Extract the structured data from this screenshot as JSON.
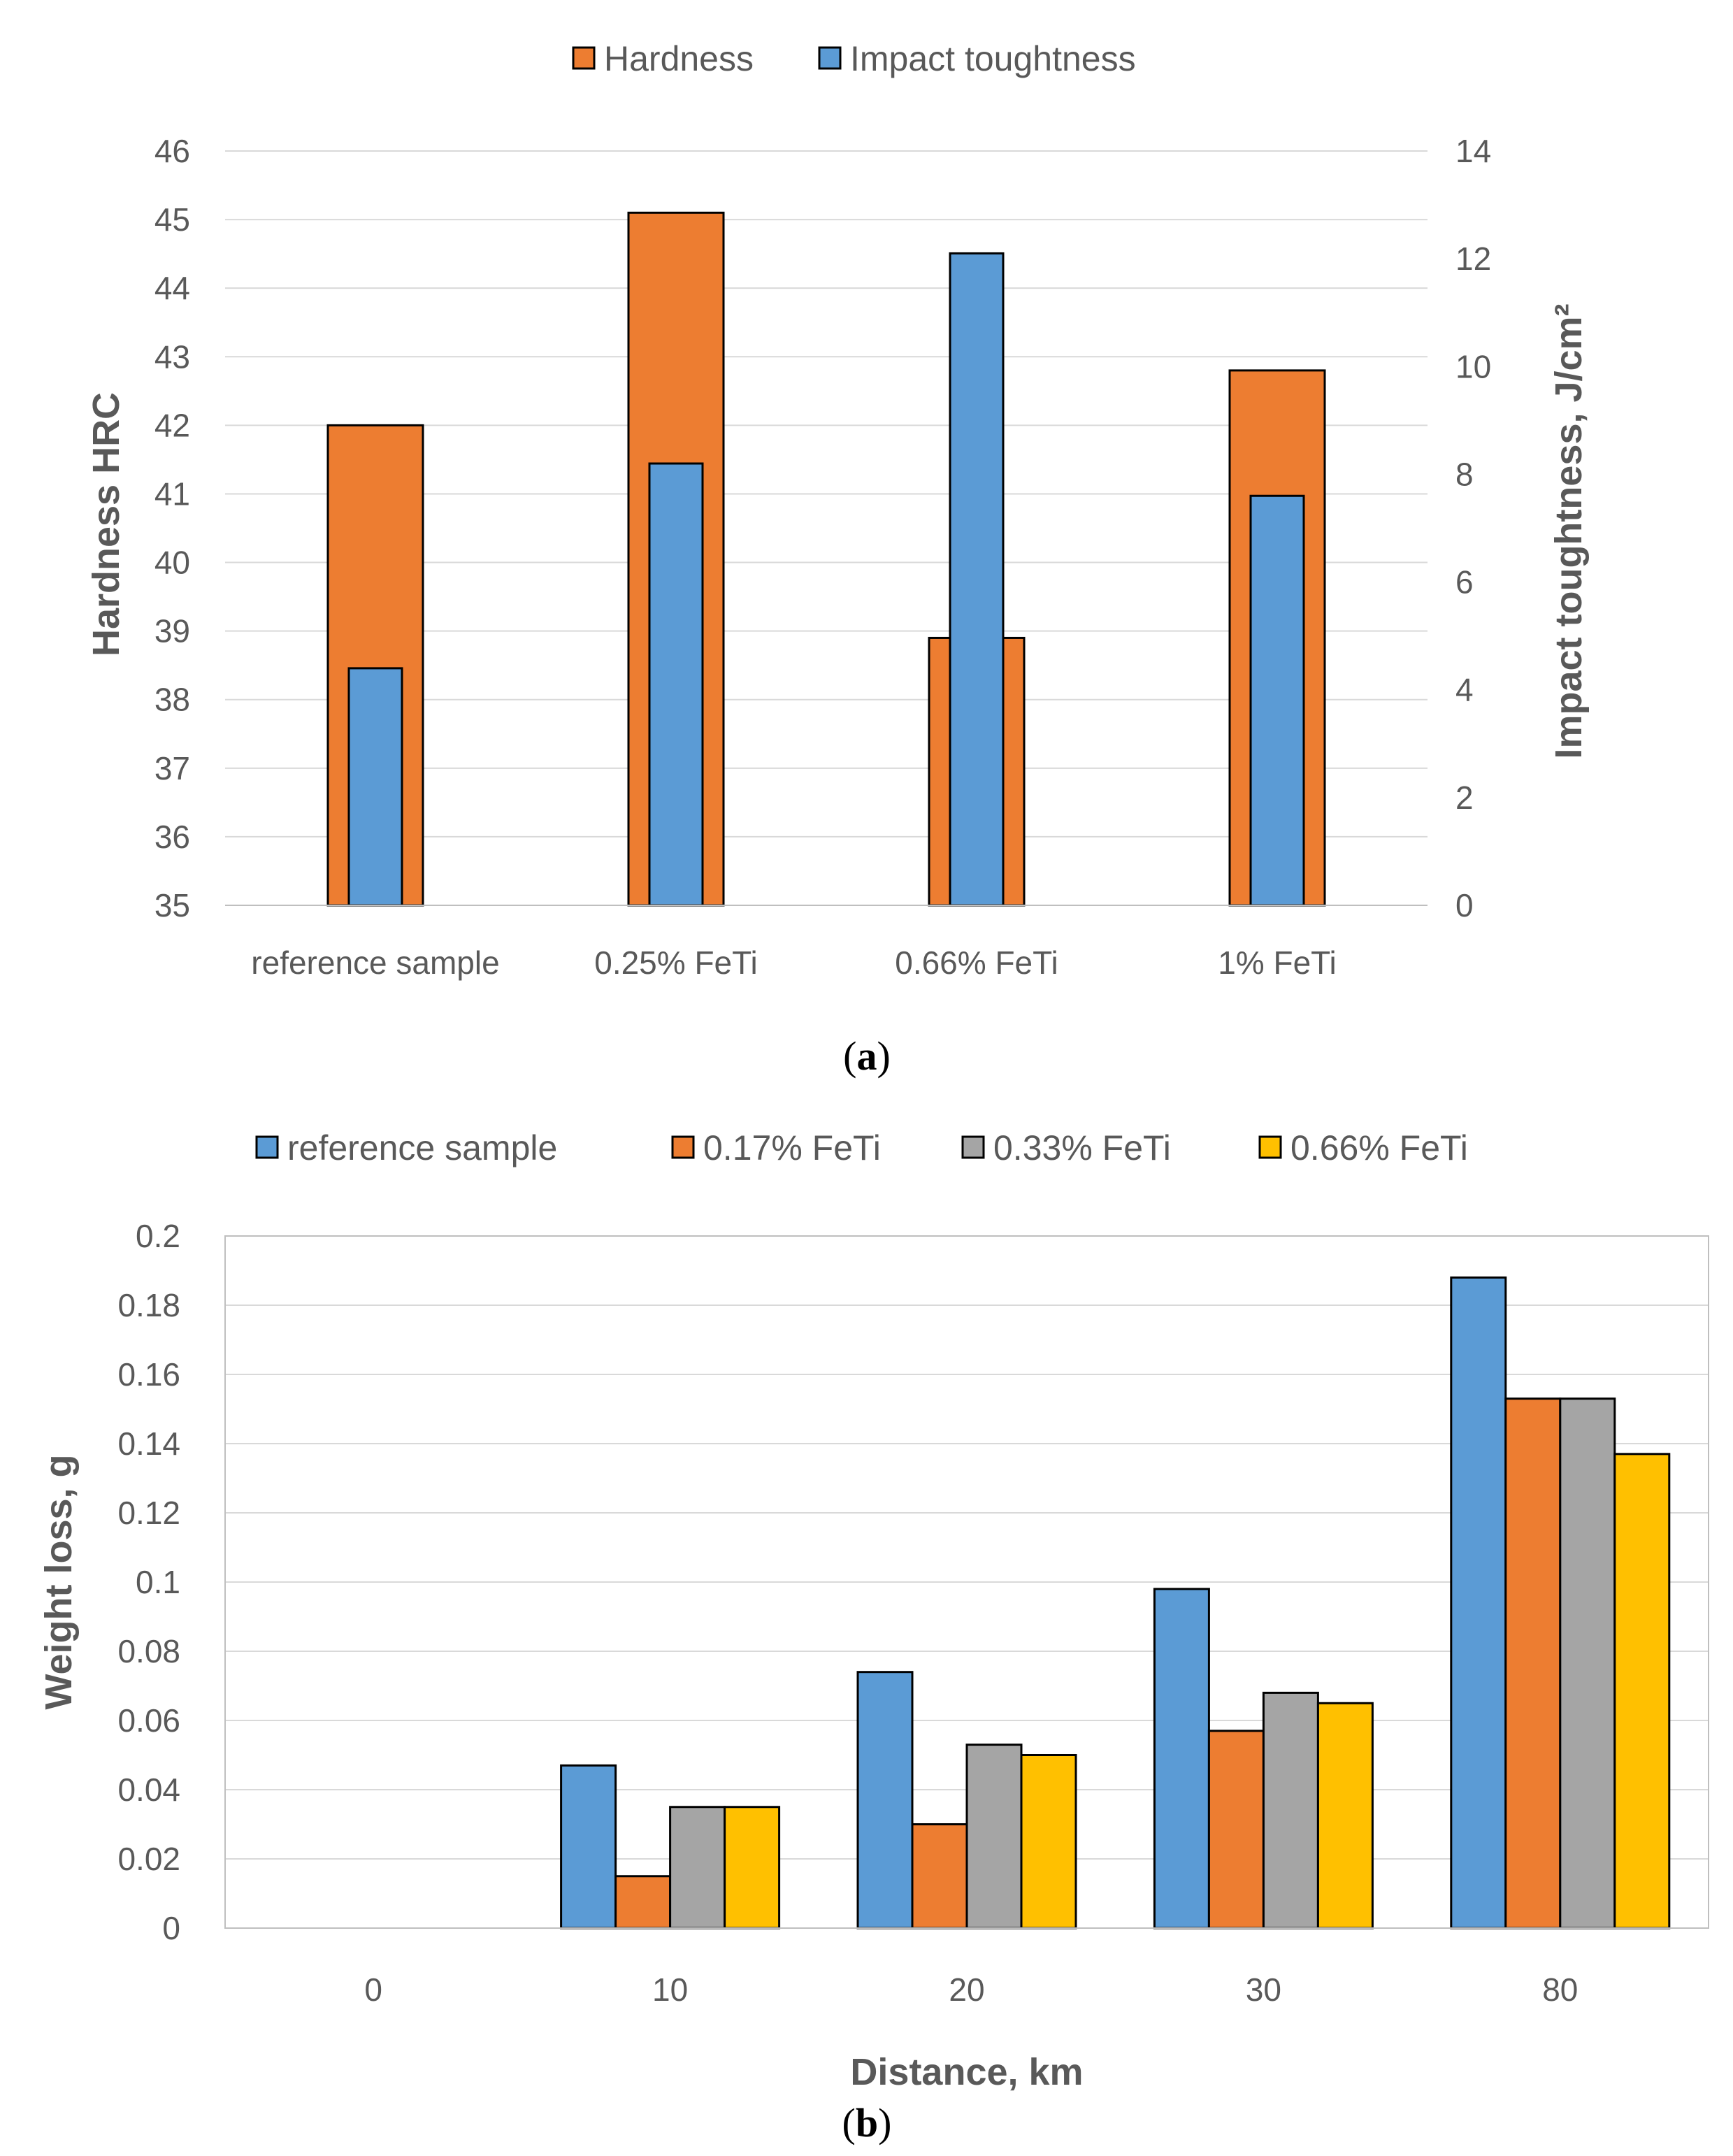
{
  "chart_data": [
    {
      "type": "bar",
      "panel_label": "a",
      "categories": [
        "reference sample",
        "0.25% FeTi",
        "0.66% FeTi",
        "1% FeTi"
      ],
      "series": [
        {
          "name": "Hardness",
          "axis": "left",
          "color": "#ED7D31",
          "values": [
            42.0,
            45.1,
            38.9,
            42.8
          ]
        },
        {
          "name": "Impact toughtness",
          "axis": "right",
          "color": "#5B9BD5",
          "values": [
            4.4,
            8.2,
            12.1,
            7.6
          ]
        }
      ],
      "ylabel": "Hardness HRC",
      "y2label": "Impact toughtness, J/cm²",
      "ylim": [
        35,
        46
      ],
      "y2lim": [
        0,
        14
      ],
      "yticks": [
        35,
        36,
        37,
        38,
        39,
        40,
        41,
        42,
        43,
        44,
        45,
        46
      ],
      "y2ticks": [
        0,
        2,
        4,
        6,
        8,
        10,
        12,
        14
      ],
      "legend_position": "top-center",
      "grid": true
    },
    {
      "type": "bar",
      "panel_label": "b",
      "categories": [
        "0",
        "10",
        "20",
        "30",
        "80"
      ],
      "series": [
        {
          "name": "reference sample",
          "color": "#5B9BD5",
          "values": [
            0,
            0.047,
            0.074,
            0.098,
            0.188
          ]
        },
        {
          "name": "0.17% FeTi",
          "color": "#ED7D31",
          "values": [
            0,
            0.015,
            0.03,
            0.057,
            0.153
          ]
        },
        {
          "name": "0.33% FeTi",
          "color": "#A5A5A5",
          "values": [
            0,
            0.035,
            0.053,
            0.068,
            0.153
          ]
        },
        {
          "name": "0.66% FeTi",
          "color": "#FFC000",
          "values": [
            0,
            0.035,
            0.05,
            0.065,
            0.137
          ]
        }
      ],
      "xlabel": "Distance, km",
      "ylabel": "Weight loss, g",
      "ylim": [
        0,
        0.2
      ],
      "yticks": [
        "0",
        "0.02",
        "0.04",
        "0.06",
        "0.08",
        "0.1",
        "0.12",
        "0.14",
        "0.16",
        "0.18",
        "0.2"
      ],
      "legend_position": "top-center",
      "grid": true
    }
  ]
}
